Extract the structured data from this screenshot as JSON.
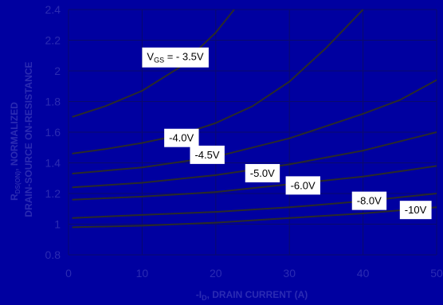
{
  "chart_data": {
    "type": "line",
    "xlabel_prefix": "-I",
    "xlabel_sub": "D",
    "xlabel_suffix": ", DRAIN CURRENT (A)",
    "ylabel_prefix": "R",
    "ylabel_sub": "DS(ON)",
    "ylabel_line1": ", NORMALIZED",
    "ylabel_line2": "DRAIN-SOURCE ON-RESISTANCE",
    "xlim": [
      0,
      50
    ],
    "ylim": [
      0.8,
      2.4
    ],
    "x_ticks": [
      {
        "v": 0,
        "t": "0"
      },
      {
        "v": 10,
        "t": "10"
      },
      {
        "v": 20,
        "t": "20"
      },
      {
        "v": 30,
        "t": "30"
      },
      {
        "v": 40,
        "t": "40"
      },
      {
        "v": 50,
        "t": "50"
      }
    ],
    "y_ticks": [
      {
        "v": 0.8,
        "t": "0.8"
      },
      {
        "v": 1.0,
        "t": "1"
      },
      {
        "v": 1.2,
        "t": "1.2"
      },
      {
        "v": 1.4,
        "t": "1.4"
      },
      {
        "v": 1.6,
        "t": "1.6"
      },
      {
        "v": 1.8,
        "t": "1.8"
      },
      {
        "v": 2.0,
        "t": "2"
      },
      {
        "v": 2.2,
        "t": "2.2"
      },
      {
        "v": 2.4,
        "t": "2.4"
      }
    ],
    "grid": true,
    "background_color": "#0000a0",
    "grid_color": "#0a0a6a",
    "line_color": "#2a2a2a",
    "text_color": "#2b2bb3",
    "series": [
      {
        "name": "V_GS = - 3.5V",
        "x": [
          0.5,
          5,
          10,
          15,
          20,
          22.5
        ],
        "y": [
          1.7,
          1.77,
          1.87,
          2.02,
          2.25,
          2.4
        ]
      },
      {
        "name": "-4.0V",
        "x": [
          0.5,
          5,
          10,
          15,
          20,
          25,
          30,
          35,
          40
        ],
        "y": [
          1.46,
          1.49,
          1.53,
          1.58,
          1.66,
          1.77,
          1.93,
          2.15,
          2.4
        ]
      },
      {
        "name": "-4.5V",
        "x": [
          0.5,
          10,
          20,
          30,
          40,
          45,
          50
        ],
        "y": [
          1.33,
          1.37,
          1.44,
          1.56,
          1.72,
          1.81,
          1.94
        ]
      },
      {
        "name": "-5.0V",
        "x": [
          0.5,
          10,
          20,
          30,
          40,
          50
        ],
        "y": [
          1.24,
          1.27,
          1.32,
          1.39,
          1.48,
          1.6
        ]
      },
      {
        "name": "-6.0V",
        "x": [
          0.5,
          10,
          20,
          30,
          40,
          50
        ],
        "y": [
          1.16,
          1.18,
          1.21,
          1.26,
          1.31,
          1.38
        ]
      },
      {
        "name": "-8.0V",
        "x": [
          0.5,
          10,
          20,
          30,
          40,
          50
        ],
        "y": [
          1.04,
          1.06,
          1.08,
          1.11,
          1.15,
          1.2
        ]
      },
      {
        "name": "-10V",
        "x": [
          0.5,
          10,
          20,
          30,
          40,
          50
        ],
        "y": [
          0.98,
          0.99,
          1.01,
          1.04,
          1.07,
          1.11
        ]
      }
    ],
    "annotations": [
      {
        "label": "-3.5V",
        "main": "V",
        "sub": "GS",
        "rest": " = - 3.5V",
        "ax": 10,
        "ay": 2.09
      },
      {
        "label": "-4.0V",
        "main": "-4.0V",
        "ax": 13,
        "ay": 1.56
      },
      {
        "label": "-4.5V",
        "main": "-4.5V",
        "ax": 16.5,
        "ay": 1.45
      },
      {
        "label": "-5.0V",
        "main": "-5.0V",
        "ax": 24,
        "ay": 1.33
      },
      {
        "label": "-6.0V",
        "main": "-6.0V",
        "ax": 29.5,
        "ay": 1.25
      },
      {
        "label": "-8.0V",
        "main": "-8.0V",
        "ax": 38.5,
        "ay": 1.15
      },
      {
        "label": "-10V",
        "main": "-10V",
        "ax": 45,
        "ay": 1.09
      }
    ]
  }
}
